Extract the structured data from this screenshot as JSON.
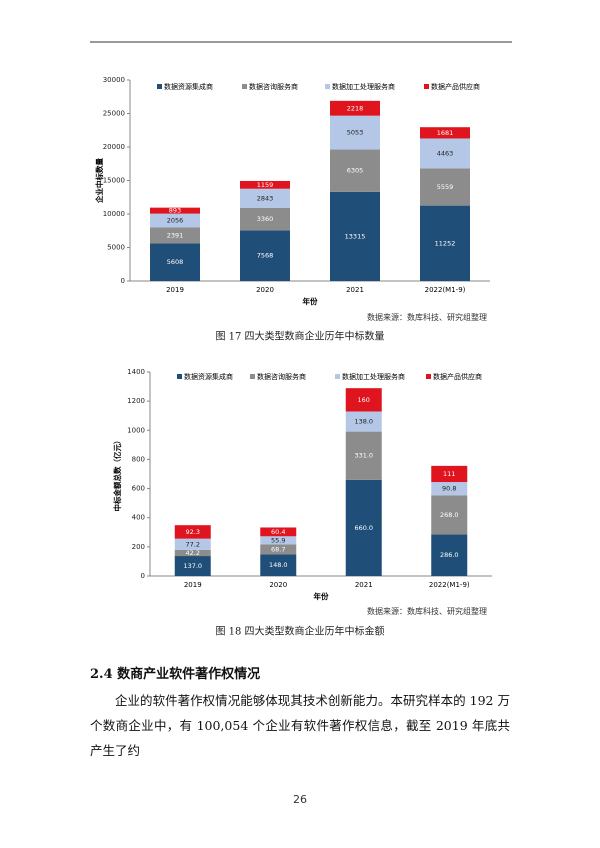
{
  "chart_data": [
    {
      "type": "stacked-bar",
      "y_label": "企业中标数量",
      "x_label": "年份",
      "source": "数据来源：数库科技、研究组整理",
      "caption": "图 17  四大类型数商企业历年中标数量",
      "categories": [
        "2019",
        "2020",
        "2021",
        "2022(M1-9)"
      ],
      "series": [
        {
          "name": "数据资源集成商",
          "color": "#1f4e79",
          "values": [
            5608,
            7568,
            13315,
            11252
          ]
        },
        {
          "name": "数据咨询服务商",
          "color": "#8c8c8c",
          "values": [
            2391,
            3360,
            6305,
            5559
          ]
        },
        {
          "name": "数据加工处理服务商",
          "color": "#b4c7e7",
          "values": [
            2056,
            2843,
            5053,
            4463
          ]
        },
        {
          "name": "数据产品供应商",
          "color": "#e0141e",
          "values": [
            893,
            1159,
            2218,
            1681
          ]
        }
      ],
      "ylim": [
        0,
        30000
      ],
      "yticks": [
        0,
        5000,
        10000,
        15000,
        20000,
        25000,
        30000
      ]
    },
    {
      "type": "stacked-bar",
      "y_label": "中标金额总数（亿元）",
      "x_label": "年份",
      "source": "数据来源：数库科技、研究组整理",
      "caption": "图 18  四大类型数商企业历年中标金额",
      "categories": [
        "2019",
        "2020",
        "2021",
        "2022(M1-9)"
      ],
      "series": [
        {
          "name": "数据资源集成商",
          "color": "#1f4e79",
          "values": [
            137.0,
            148.0,
            660.0,
            286.0
          ],
          "value_labels": [
            "137.0",
            "148.0",
            "660.0",
            "286.0"
          ]
        },
        {
          "name": "数据咨询服务商",
          "color": "#8c8c8c",
          "values": [
            42.2,
            68.7,
            331.0,
            268.0
          ],
          "value_labels": [
            "42.2",
            "68.7",
            "331.0",
            "268.0"
          ]
        },
        {
          "name": "数据加工处理服务商",
          "color": "#b4c7e7",
          "values": [
            77.2,
            55.9,
            138.0,
            90.8
          ],
          "value_labels": [
            "77.2",
            "55.9",
            "138.0",
            "90.8"
          ]
        },
        {
          "name": "数据产品供应商",
          "color": "#e0141e",
          "values": [
            92.3,
            60.4,
            160,
            111
          ]
        }
      ],
      "ylim": [
        0,
        1400
      ],
      "yticks": [
        0,
        200,
        400,
        600,
        800,
        1000,
        1200,
        1400
      ]
    }
  ],
  "document": {
    "heading": "2.4  数商产业软件著作权情况",
    "paragraph": "企业的软件著作权情况能够体现其技术创新能力。本研究样本的 192 万个数商企业中，有 100,054 个企业有软件著作权信息，截至 2019 年底共产生了约",
    "page_number": "26"
  }
}
